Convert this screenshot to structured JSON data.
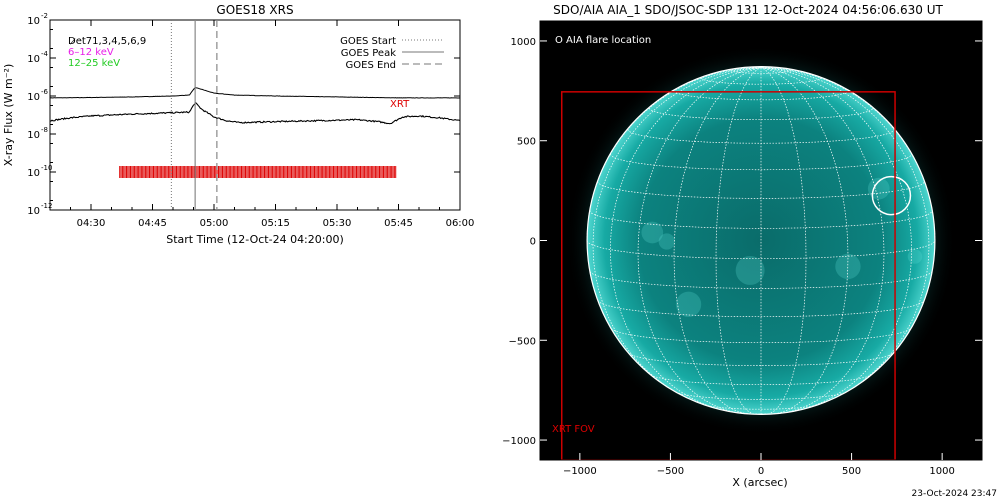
{
  "chart_data": [
    {
      "type": "line",
      "title": "GOES18 XRS",
      "xlabel": "Start Time (12-Oct-24 04:20:00)",
      "ylabel": "X-ray Flux (W m⁻²)",
      "y_scale": "log",
      "ylim": [
        1e-12,
        0.01
      ],
      "xlim_minutes": [
        20,
        120
      ],
      "x_tick_labels": [
        {
          "t": 30,
          "label": "04:30"
        },
        {
          "t": 45,
          "label": "04:45"
        },
        {
          "t": 60,
          "label": "05:00"
        },
        {
          "t": 75,
          "label": "05:15"
        },
        {
          "t": 90,
          "label": "05:30"
        },
        {
          "t": 105,
          "label": "05:45"
        },
        {
          "t": 120,
          "label": "06:00"
        }
      ],
      "y_ticks": [
        {
          "v": -2,
          "label": "10",
          "exp": "-2"
        },
        {
          "v": -4,
          "label": "10",
          "exp": "-4"
        },
        {
          "v": -6,
          "label": "10",
          "exp": "-6"
        },
        {
          "v": -8,
          "label": "10",
          "exp": "-8"
        },
        {
          "v": -10,
          "label": "10",
          "exp": "-10"
        },
        {
          "v": -12,
          "label": "10",
          "exp": "-12"
        }
      ],
      "annotations": {
        "det_label": "D̷et71,3,4,5,6,9",
        "band_low": "6–12 keV",
        "band_high": "12–25 keV",
        "xrt_label": "XRT"
      },
      "legend": {
        "position": "top-right",
        "items": [
          {
            "label": "GOES Start",
            "style": "dotted"
          },
          {
            "label": "GOES Peak",
            "style": "solid"
          },
          {
            "label": "GOES End",
            "style": "dashed"
          }
        ]
      },
      "goes_times_minutes": {
        "start": 49.6,
        "peak": 55.4,
        "end": 60.7
      },
      "series": [
        {
          "name": "6–12 keV",
          "x_minutes": [
            20,
            30,
            40,
            50,
            54,
            55.4,
            57,
            60,
            65,
            75,
            90,
            105,
            120
          ],
          "log10_flux": [
            -6.1,
            -6.08,
            -6.05,
            -6.0,
            -5.95,
            -5.55,
            -5.65,
            -5.85,
            -5.95,
            -6.0,
            -6.05,
            -6.1,
            -6.1
          ]
        },
        {
          "name": "12–25 keV",
          "x_minutes": [
            20,
            25,
            30,
            40,
            50,
            54,
            55.4,
            57,
            60,
            63,
            66,
            75,
            85,
            95,
            100,
            103,
            106,
            110,
            115,
            120
          ],
          "log10_flux": [
            -7.3,
            -7.15,
            -7.05,
            -6.95,
            -6.88,
            -6.85,
            -6.35,
            -6.7,
            -7.1,
            -7.3,
            -7.4,
            -7.35,
            -7.3,
            -7.25,
            -7.35,
            -7.45,
            -7.1,
            -7.05,
            -7.15,
            -7.3
          ]
        }
      ],
      "xrt_coverage_minutes": [
        37,
        104.5
      ],
      "xrt_marker_log10": -10
    },
    {
      "type": "scatter",
      "title": "SDO/AIA AIA_1 SDO/JSOC-SDP 131 12-Oct-2024 04:56:06.630 UT",
      "xlabel": "X (arcsec)",
      "ylabel": "",
      "xlim": [
        -1220,
        1220
      ],
      "ylim": [
        -1100,
        1100
      ],
      "x_ticks": [
        -1000,
        -500,
        0,
        500,
        1000
      ],
      "y_ticks": [
        -1000,
        -500,
        0,
        500,
        1000
      ],
      "x_tick_labels": [
        "−1000",
        "−500",
        "0",
        "500",
        "1000"
      ],
      "y_tick_labels": [
        "−1000",
        "−500",
        "0",
        "500",
        "1000"
      ],
      "solar_radius_arcsec": 960,
      "flare_location_arcsec": [
        720,
        225
      ],
      "flare_legend": "O AIA flare location",
      "xrt_fov": {
        "label": "XRT FOV",
        "x": [
          -1100,
          740
        ],
        "y": [
          -1100,
          745
        ]
      },
      "colors": {
        "sun": "#0f9a96",
        "fov": "#cc0000"
      }
    }
  ],
  "footer": {
    "timestamp": "23-Oct-2024 23:47"
  }
}
